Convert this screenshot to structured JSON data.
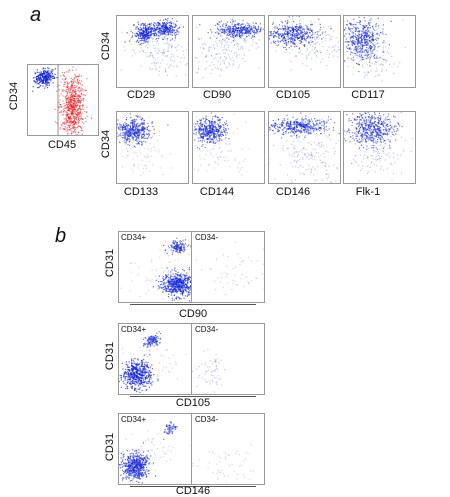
{
  "panel_a": {
    "letter": "a",
    "gate_plot": {
      "x_label": "CD45",
      "y_label": "CD34"
    },
    "grid_y_label": "CD34",
    "row1": [
      "CD29",
      "CD90",
      "CD105",
      "CD117"
    ],
    "row2": [
      "CD133",
      "CD144",
      "CD146",
      "Flk-1"
    ]
  },
  "panel_b": {
    "letter": "b",
    "y_label": "CD31",
    "positive_label": "CD34+",
    "negative_label": "CD34-",
    "x_labels": [
      "CD90",
      "CD105",
      "CD146"
    ]
  },
  "colors": {
    "dots": "#1428d8",
    "gate_red": "#e8161a",
    "frame": "#9a9a9a"
  }
}
